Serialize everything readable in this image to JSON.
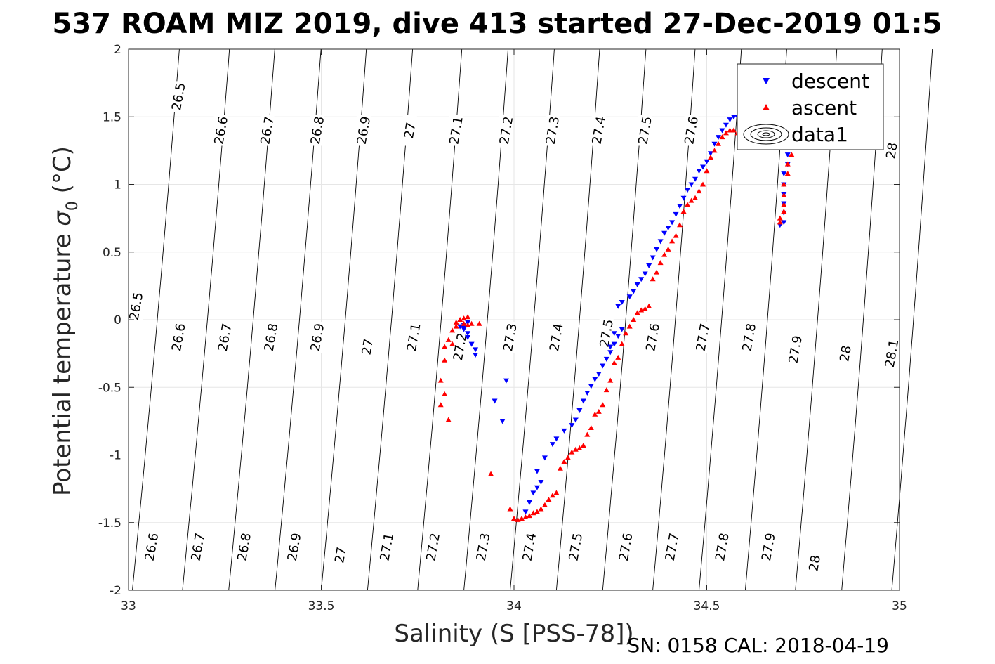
{
  "chart_data": {
    "type": "scatter",
    "title": "537 ROAM MIZ 2019, dive 413 started 27-Dec-2019 01:5",
    "xlabel": "Salinity (S [PSS-78])",
    "ylabel_main": "Potential temperature ",
    "ylabel_sigma": "σ",
    "ylabel_sub": "0",
    "ylabel_unit": " (°C)",
    "xlim": [
      33,
      35
    ],
    "ylim": [
      -2,
      2
    ],
    "xticks": [
      33,
      33.5,
      34,
      34.5,
      35
    ],
    "xtick_labels": [
      "33",
      "33.5",
      "34",
      "34.5",
      "35"
    ],
    "yticks": [
      -2,
      -1.5,
      -1,
      -0.5,
      0,
      0.5,
      1,
      1.5,
      2
    ],
    "ytick_labels": [
      "-2",
      "-1.5",
      "-1",
      "-0.5",
      "0",
      "0.5",
      "1",
      "1.5",
      "2"
    ],
    "grid": true,
    "legend_position": "top-right",
    "legend": [
      "descent",
      "ascent",
      "data1"
    ],
    "colors": {
      "descent": "#0000ff",
      "ascent": "#ff0000",
      "contour": "#000000",
      "grid": "#e6e6e6"
    },
    "footer": "SN: 0158  CAL: 2018-04-19",
    "contour_lines": [
      {
        "s": 33.01,
        "b": 0.57
      },
      {
        "s": 33.14,
        "b": 0.57
      },
      {
        "s": 33.26,
        "b": 0.56
      },
      {
        "s": 33.38,
        "b": 0.56
      },
      {
        "s": 33.5,
        "b": 0.55
      },
      {
        "s": 33.62,
        "b": 0.55
      },
      {
        "s": 33.75,
        "b": 0.54
      },
      {
        "s": 33.87,
        "b": 0.54
      },
      {
        "s": 33.99,
        "b": 0.54
      },
      {
        "s": 34.11,
        "b": 0.53
      },
      {
        "s": 34.23,
        "b": 0.53
      },
      {
        "s": 34.36,
        "b": 0.52
      },
      {
        "s": 34.48,
        "b": 0.52
      },
      {
        "s": 34.6,
        "b": 0.51
      },
      {
        "s": 34.73,
        "b": 0.51
      },
      {
        "s": 34.85,
        "b": 0.5
      },
      {
        "s": 34.98,
        "b": 0.5
      }
    ],
    "contour_labels": [
      {
        "text": "26.5",
        "s": 33.13,
        "t": 1.65
      },
      {
        "text": "26.6",
        "s": 33.24,
        "t": 1.4
      },
      {
        "text": "26.7",
        "s": 33.36,
        "t": 1.4
      },
      {
        "text": "26.8",
        "s": 33.49,
        "t": 1.4
      },
      {
        "text": "26.9",
        "s": 33.61,
        "t": 1.4
      },
      {
        "text": "27",
        "s": 33.73,
        "t": 1.4
      },
      {
        "text": "27.1",
        "s": 33.85,
        "t": 1.4
      },
      {
        "text": "27.2",
        "s": 33.98,
        "t": 1.4
      },
      {
        "text": "27.3",
        "s": 34.1,
        "t": 1.4
      },
      {
        "text": "27.4",
        "s": 34.22,
        "t": 1.4
      },
      {
        "text": "27.5",
        "s": 34.34,
        "t": 1.4
      },
      {
        "text": "27.6",
        "s": 34.46,
        "t": 1.4
      },
      {
        "text": "28",
        "s": 34.98,
        "t": 1.25
      },
      {
        "text": "26.5",
        "s": 33.02,
        "t": 0.1
      },
      {
        "text": "26.6",
        "s": 33.13,
        "t": -0.13
      },
      {
        "text": "26.7",
        "s": 33.25,
        "t": -0.13
      },
      {
        "text": "26.8",
        "s": 33.37,
        "t": -0.13
      },
      {
        "text": "26.9",
        "s": 33.49,
        "t": -0.13
      },
      {
        "text": "27",
        "s": 33.62,
        "t": -0.2
      },
      {
        "text": "27.1",
        "s": 33.74,
        "t": -0.13
      },
      {
        "text": "27.2",
        "s": 33.86,
        "t": -0.2
      },
      {
        "text": "27.3",
        "s": 33.99,
        "t": -0.13
      },
      {
        "text": "27.4",
        "s": 34.11,
        "t": -0.13
      },
      {
        "text": "27.5",
        "s": 34.24,
        "t": -0.1
      },
      {
        "text": "27.6",
        "s": 34.36,
        "t": -0.13
      },
      {
        "text": "27.7",
        "s": 34.49,
        "t": -0.13
      },
      {
        "text": "27.8",
        "s": 34.61,
        "t": -0.13
      },
      {
        "text": "27.9",
        "s": 34.73,
        "t": -0.22
      },
      {
        "text": "28",
        "s": 34.86,
        "t": -0.25
      },
      {
        "text": "28.1",
        "s": 34.98,
        "t": -0.25
      },
      {
        "text": "26.6",
        "s": 33.06,
        "t": -1.68
      },
      {
        "text": "26.7",
        "s": 33.18,
        "t": -1.68
      },
      {
        "text": "26.8",
        "s": 33.3,
        "t": -1.68
      },
      {
        "text": "26.9",
        "s": 33.43,
        "t": -1.68
      },
      {
        "text": "27",
        "s": 33.55,
        "t": -1.74
      },
      {
        "text": "27.1",
        "s": 33.67,
        "t": -1.68
      },
      {
        "text": "27.2",
        "s": 33.79,
        "t": -1.68
      },
      {
        "text": "27.3",
        "s": 33.92,
        "t": -1.68
      },
      {
        "text": "27.4",
        "s": 34.04,
        "t": -1.68
      },
      {
        "text": "27.5",
        "s": 34.16,
        "t": -1.68
      },
      {
        "text": "27.6",
        "s": 34.29,
        "t": -1.68
      },
      {
        "text": "27.7",
        "s": 34.41,
        "t": -1.68
      },
      {
        "text": "27.8",
        "s": 34.54,
        "t": -1.68
      },
      {
        "text": "27.9",
        "s": 34.66,
        "t": -1.68
      },
      {
        "text": "28",
        "s": 34.78,
        "t": -1.8
      }
    ],
    "series": [
      {
        "name": "descent",
        "marker": "triangle-down",
        "points": [
          [
            33.86,
            -0.05
          ],
          [
            33.87,
            -0.04
          ],
          [
            33.87,
            -0.07
          ],
          [
            33.88,
            -0.1
          ],
          [
            33.88,
            -0.13
          ],
          [
            33.89,
            -0.18
          ],
          [
            33.9,
            -0.22
          ],
          [
            33.9,
            -0.26
          ],
          [
            33.88,
            -0.02
          ],
          [
            33.87,
            -0.06
          ],
          [
            33.98,
            -0.45
          ],
          [
            33.95,
            -0.6
          ],
          [
            33.97,
            -0.75
          ],
          [
            34.03,
            -1.42
          ],
          [
            34.04,
            -1.35
          ],
          [
            34.05,
            -1.28
          ],
          [
            34.06,
            -1.24
          ],
          [
            34.07,
            -1.2
          ],
          [
            34.06,
            -1.12
          ],
          [
            34.08,
            -1.02
          ],
          [
            34.1,
            -0.92
          ],
          [
            34.11,
            -0.88
          ],
          [
            34.13,
            -0.82
          ],
          [
            34.15,
            -0.78
          ],
          [
            34.16,
            -0.74
          ],
          [
            34.17,
            -0.67
          ],
          [
            34.18,
            -0.6
          ],
          [
            34.19,
            -0.54
          ],
          [
            34.2,
            -0.49
          ],
          [
            34.21,
            -0.44
          ],
          [
            34.22,
            -0.4
          ],
          [
            34.23,
            -0.34
          ],
          [
            34.24,
            -0.29
          ],
          [
            34.25,
            -0.24
          ],
          [
            34.26,
            -0.18
          ],
          [
            34.27,
            -0.12
          ],
          [
            34.28,
            -0.07
          ],
          [
            34.25,
            -0.2
          ],
          [
            34.26,
            -0.1
          ],
          [
            34.27,
            0.1
          ],
          [
            34.28,
            0.13
          ],
          [
            34.3,
            0.17
          ],
          [
            34.31,
            0.21
          ],
          [
            34.32,
            0.26
          ],
          [
            34.33,
            0.3
          ],
          [
            34.34,
            0.34
          ],
          [
            34.35,
            0.4
          ],
          [
            34.36,
            0.46
          ],
          [
            34.37,
            0.52
          ],
          [
            34.38,
            0.58
          ],
          [
            34.39,
            0.64
          ],
          [
            34.4,
            0.68
          ],
          [
            34.41,
            0.72
          ],
          [
            34.42,
            0.78
          ],
          [
            34.43,
            0.84
          ],
          [
            34.44,
            0.9
          ],
          [
            34.45,
            0.96
          ],
          [
            34.46,
            1.0
          ],
          [
            34.47,
            1.04
          ],
          [
            34.48,
            1.1
          ],
          [
            34.49,
            1.13
          ],
          [
            34.5,
            1.17
          ],
          [
            34.51,
            1.23
          ],
          [
            34.52,
            1.3
          ],
          [
            34.53,
            1.35
          ],
          [
            34.54,
            1.4
          ],
          [
            34.55,
            1.44
          ],
          [
            34.56,
            1.48
          ],
          [
            34.57,
            1.5
          ],
          [
            34.58,
            1.5
          ],
          [
            34.72,
            1.45
          ],
          [
            34.72,
            1.38
          ],
          [
            34.71,
            1.3
          ],
          [
            34.71,
            1.22
          ],
          [
            34.71,
            1.15
          ],
          [
            34.7,
            1.08
          ],
          [
            34.7,
            1.0
          ],
          [
            34.7,
            0.93
          ],
          [
            34.7,
            0.86
          ],
          [
            34.7,
            0.79
          ],
          [
            34.7,
            0.72
          ],
          [
            34.69,
            0.7
          ]
        ]
      },
      {
        "name": "ascent",
        "marker": "triangle-up",
        "points": [
          [
            33.85,
            -0.02
          ],
          [
            33.86,
            0.0
          ],
          [
            33.87,
            0.01
          ],
          [
            33.88,
            0.02
          ],
          [
            33.87,
            -0.03
          ],
          [
            33.88,
            -0.04
          ],
          [
            33.89,
            -0.03
          ],
          [
            33.91,
            -0.03
          ],
          [
            33.85,
            -0.05
          ],
          [
            33.84,
            -0.08
          ],
          [
            33.83,
            -0.15
          ],
          [
            33.82,
            -0.2
          ],
          [
            33.84,
            -0.18
          ],
          [
            33.82,
            -0.3
          ],
          [
            33.81,
            -0.45
          ],
          [
            33.82,
            -0.55
          ],
          [
            33.81,
            -0.63
          ],
          [
            33.83,
            -0.74
          ],
          [
            33.94,
            -1.14
          ],
          [
            33.99,
            -1.4
          ],
          [
            34.0,
            -1.47
          ],
          [
            34.01,
            -1.48
          ],
          [
            34.02,
            -1.47
          ],
          [
            34.03,
            -1.46
          ],
          [
            34.04,
            -1.45
          ],
          [
            34.05,
            -1.43
          ],
          [
            34.06,
            -1.42
          ],
          [
            34.07,
            -1.4
          ],
          [
            34.08,
            -1.37
          ],
          [
            34.09,
            -1.33
          ],
          [
            34.1,
            -1.3
          ],
          [
            34.11,
            -1.28
          ],
          [
            34.12,
            -1.1
          ],
          [
            34.13,
            -1.05
          ],
          [
            34.14,
            -1.02
          ],
          [
            34.15,
            -0.98
          ],
          [
            34.16,
            -0.96
          ],
          [
            34.17,
            -0.95
          ],
          [
            34.18,
            -0.93
          ],
          [
            34.19,
            -0.85
          ],
          [
            34.2,
            -0.8
          ],
          [
            34.21,
            -0.7
          ],
          [
            34.22,
            -0.68
          ],
          [
            34.23,
            -0.63
          ],
          [
            34.24,
            -0.52
          ],
          [
            34.25,
            -0.45
          ],
          [
            34.26,
            -0.32
          ],
          [
            34.27,
            -0.28
          ],
          [
            34.28,
            -0.18
          ],
          [
            34.29,
            -0.1
          ],
          [
            34.3,
            -0.05
          ],
          [
            34.31,
            0.0
          ],
          [
            34.32,
            0.05
          ],
          [
            34.33,
            0.07
          ],
          [
            34.34,
            0.08
          ],
          [
            34.35,
            0.1
          ],
          [
            34.36,
            0.3
          ],
          [
            34.37,
            0.35
          ],
          [
            34.38,
            0.42
          ],
          [
            34.39,
            0.48
          ],
          [
            34.4,
            0.52
          ],
          [
            34.41,
            0.58
          ],
          [
            34.42,
            0.62
          ],
          [
            34.43,
            0.7
          ],
          [
            34.44,
            0.8
          ],
          [
            34.45,
            0.85
          ],
          [
            34.46,
            0.88
          ],
          [
            34.47,
            0.9
          ],
          [
            34.48,
            0.95
          ],
          [
            34.49,
            1.0
          ],
          [
            34.5,
            1.1
          ],
          [
            34.51,
            1.2
          ],
          [
            34.52,
            1.25
          ],
          [
            34.53,
            1.3
          ],
          [
            34.54,
            1.35
          ],
          [
            34.55,
            1.38
          ],
          [
            34.56,
            1.4
          ],
          [
            34.57,
            1.4
          ],
          [
            34.58,
            1.38
          ],
          [
            34.6,
            1.35
          ],
          [
            34.72,
            1.3
          ],
          [
            34.72,
            1.22
          ],
          [
            34.71,
            1.15
          ],
          [
            34.71,
            1.08
          ],
          [
            34.7,
            1.0
          ],
          [
            34.7,
            0.92
          ],
          [
            34.7,
            0.85
          ],
          [
            34.7,
            0.8
          ],
          [
            34.69,
            0.75
          ],
          [
            34.69,
            0.72
          ]
        ]
      }
    ]
  }
}
